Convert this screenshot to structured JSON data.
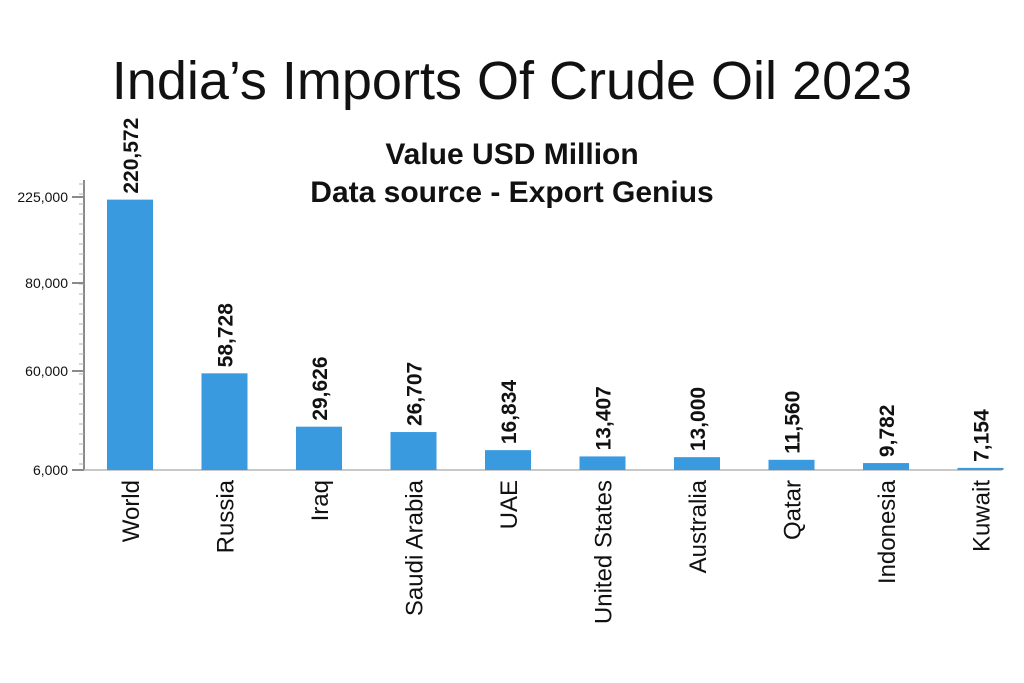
{
  "chart_data": {
    "type": "bar",
    "title": "India’s Imports Of Crude Oil 2023",
    "subtitle": [
      "Value USD Million",
      "Data source - Export Genius"
    ],
    "xlabel": "",
    "ylabel": "",
    "categories": [
      "World",
      "Russia",
      "Iraq",
      "Saudi Arabia",
      "UAE",
      "United States",
      "Australia",
      "Qatar",
      "Indonesia",
      "Kuwait"
    ],
    "values": [
      220572,
      58728,
      29626,
      26707,
      16834,
      13407,
      13000,
      11560,
      9782,
      7154
    ],
    "value_labels": [
      "220,572",
      "58,728",
      "29,626",
      "26,707",
      "16,834",
      "13,407",
      "13,000",
      "11,560",
      "9,782",
      "7,154"
    ],
    "yticks": [
      6000,
      60000,
      80000,
      225000
    ],
    "ytick_labels": [
      "6,000",
      "60,000",
      "80,000",
      "225,000"
    ],
    "y_axis_scale": "non-linear (unevenly spaced tick values)",
    "grid": false,
    "legend": "none",
    "colors": {
      "bar": "#3a9ae0",
      "axis": "#8a8a8a",
      "text": "#111111"
    }
  }
}
